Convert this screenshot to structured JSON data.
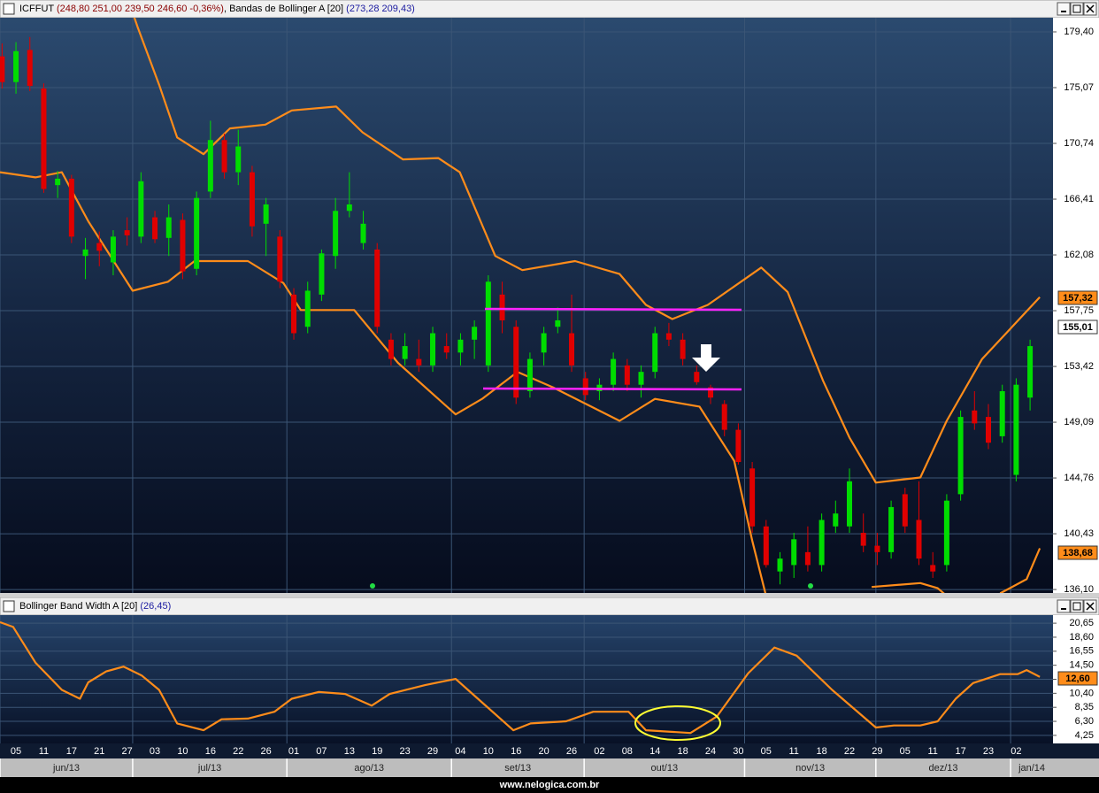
{
  "header": {
    "symbol": "ICFFUT",
    "quote": "(248,80  251,00  239,50  246,60  -0,36%)",
    "indicator": ", Bandas de Bollinger A [20]",
    "indicator_values": "(273,28  209,43)"
  },
  "lower_header": {
    "indicator": "Bollinger Band Width A [20]",
    "indicator_values": "(26,45)"
  },
  "price_tags": {
    "upper_band": "157,32",
    "last": "155,01",
    "lower_band": "138,68",
    "band_width": "12,60"
  },
  "chart_data": [
    {
      "type": "candlestick",
      "xlim": [
        -0.3,
        151.3
      ],
      "ylim": [
        135.83,
        180.5
      ],
      "yticks": [
        {
          "value": 179.4,
          "label": "179,40"
        },
        {
          "value": 175.07,
          "label": "175,07"
        },
        {
          "value": 170.74,
          "label": "170,74"
        },
        {
          "value": 166.41,
          "label": "166,41"
        },
        {
          "value": 162.08,
          "label": "162,08"
        },
        {
          "value": 157.75,
          "label": "157,75"
        },
        {
          "value": 153.42,
          "label": "153,42"
        },
        {
          "value": 149.09,
          "label": "149,09"
        },
        {
          "value": 144.76,
          "label": "144,76"
        },
        {
          "value": 140.43,
          "label": "140,43"
        },
        {
          "value": 136.1,
          "label": "136,10"
        }
      ],
      "up_color": "#00dd00",
      "down_color": "#e00000",
      "x": [
        0,
        2,
        4,
        6,
        8,
        10,
        12,
        14,
        16,
        18,
        20,
        22,
        24,
        26,
        28,
        30,
        32,
        34,
        36,
        38,
        40,
        42,
        44,
        46,
        48,
        50,
        52,
        54,
        56,
        58,
        60,
        62,
        64,
        66,
        68,
        70,
        72,
        74,
        76,
        78,
        80,
        82,
        84,
        86,
        88,
        90,
        92,
        94,
        96,
        98,
        100,
        102,
        104,
        106,
        108,
        110,
        112,
        114,
        116,
        118,
        120,
        122,
        124,
        126,
        128,
        130,
        132,
        134,
        136,
        138,
        140,
        142,
        144,
        146,
        148
      ],
      "open": [
        177.5,
        175.5,
        178.0,
        175.0,
        167.5,
        168.0,
        162.0,
        163.0,
        161.5,
        164.0,
        163.5,
        165.0,
        163.4,
        164.8,
        161.0,
        167.0,
        171.0,
        168.5,
        168.5,
        164.5,
        163.5,
        159.0,
        156.5,
        159.0,
        162.0,
        165.5,
        163.0,
        162.5,
        155.5,
        154.0,
        154.0,
        153.5,
        155.0,
        154.5,
        155.5,
        153.5,
        159.0,
        156.5,
        151.5,
        154.5,
        156.5,
        156.0,
        152.5,
        151.5,
        152.0,
        153.5,
        152.0,
        153.0,
        156.0,
        155.5,
        153.0,
        151.8,
        150.5,
        148.5,
        145.5,
        141.0,
        137.5,
        138.0,
        139.0,
        138.0,
        141.0,
        141.0,
        140.5,
        139.5,
        139.0,
        143.5,
        141.5,
        138.0,
        138.0,
        143.5,
        150.0,
        149.5,
        148.0,
        145.0,
        151.0
      ],
      "high": [
        178.5,
        178.6,
        179.0,
        175.4,
        168.6,
        168.3,
        163.4,
        163.9,
        164.0,
        165.0,
        168.5,
        165.5,
        166.0,
        165.3,
        167.0,
        172.5,
        171.5,
        171.8,
        169.0,
        166.5,
        164.0,
        159.5,
        160.0,
        162.5,
        166.5,
        168.5,
        165.5,
        163.0,
        156.0,
        156.0,
        155.5,
        156.5,
        156.0,
        156.0,
        157.0,
        160.5,
        160.0,
        157.0,
        154.5,
        156.5,
        158.0,
        159.0,
        153.0,
        152.5,
        154.5,
        154.0,
        153.5,
        156.5,
        156.8,
        156.0,
        153.5,
        152.0,
        150.8,
        149.0,
        146.0,
        141.5,
        139.0,
        140.5,
        141.0,
        142.0,
        143.0,
        145.5,
        142.0,
        140.5,
        143.0,
        144.0,
        144.5,
        139.0,
        143.5,
        150.0,
        151.5,
        150.5,
        152.0,
        152.5,
        155.5
      ],
      "low": [
        175.0,
        174.6,
        174.8,
        166.9,
        166.5,
        163.0,
        160.2,
        161.2,
        160.5,
        162.8,
        163.0,
        163.0,
        162.0,
        160.2,
        160.5,
        166.5,
        168.0,
        167.5,
        163.5,
        162.0,
        159.5,
        155.5,
        156.0,
        158.5,
        161.0,
        165.0,
        162.5,
        156.0,
        153.5,
        153.5,
        153.0,
        153.0,
        154.0,
        153.5,
        154.0,
        153.0,
        156.0,
        150.5,
        151.0,
        153.5,
        156.0,
        153.0,
        150.8,
        150.8,
        151.5,
        151.5,
        151.0,
        152.5,
        155.0,
        153.5,
        152.0,
        150.5,
        148.0,
        145.8,
        140.5,
        137.8,
        136.5,
        137.0,
        137.5,
        137.5,
        140.5,
        140.5,
        139.0,
        138.0,
        138.5,
        140.5,
        138.0,
        137.0,
        137.5,
        143.0,
        148.5,
        147.0,
        147.5,
        144.5,
        150.0
      ],
      "close": [
        175.5,
        177.9,
        175.2,
        167.2,
        168.0,
        163.5,
        162.5,
        162.4,
        163.5,
        163.6,
        167.8,
        163.3,
        165.0,
        160.8,
        166.5,
        171.0,
        168.5,
        170.5,
        164.3,
        166.0,
        160.0,
        156.0,
        159.3,
        162.2,
        165.5,
        166.0,
        164.5,
        156.5,
        154.0,
        155.0,
        153.5,
        156.0,
        154.5,
        155.5,
        156.5,
        160.0,
        157.0,
        151.0,
        154.0,
        156.0,
        157.0,
        153.5,
        151.2,
        152.0,
        154.0,
        152.0,
        153.0,
        156.0,
        155.5,
        154.0,
        152.2,
        151.0,
        148.5,
        146.0,
        141.0,
        138.0,
        138.5,
        140.0,
        138.0,
        141.5,
        142.0,
        144.5,
        139.5,
        139.0,
        142.5,
        141.0,
        138.5,
        137.5,
        143.0,
        149.5,
        149.0,
        147.5,
        151.5,
        152.0,
        155.0
      ],
      "bands": [
        {
          "color": "#ff8c1a",
          "x": [
            18.6,
            19.5,
            22.6,
            25.2,
            29.0,
            32.8,
            37.9,
            41.7,
            48.1,
            51.9,
            57.7,
            62.8,
            65.9,
            71.0,
            74.9,
            82.5,
            88.9,
            92.7,
            96.5,
            101.6,
            109.3,
            113.1,
            118.2,
            122.0,
            125.8,
            132.2,
            136.0,
            141.1,
            144.9,
            149.4
          ],
          "values": [
            181.2,
            179.8,
            175.3,
            171.2,
            169.9,
            171.9,
            172.2,
            173.3,
            173.6,
            171.6,
            169.5,
            169.6,
            168.5,
            162.0,
            160.9,
            161.6,
            160.6,
            158.2,
            157.1,
            158.2,
            161.1,
            159.2,
            152.3,
            147.9,
            144.4,
            144.8,
            149.2,
            154.0,
            156.2,
            158.8
          ]
        },
        {
          "color": "#ff8c1a",
          "x": [
            -0.3,
            4.8,
            8.6,
            12.4,
            18.8,
            23.9,
            27.7,
            35.4,
            40.5,
            43.0,
            50.7,
            57.0,
            65.3,
            69.1,
            74.2,
            79.3,
            88.9,
            94.0,
            100.4,
            105.4,
            108.0,
            109.9,
            null,
            125.2,
            132.2,
            134.7,
            136.0,
            null,
            143.7,
            147.5,
            149.4
          ],
          "values": [
            168.5,
            168.1,
            168.5,
            164.7,
            159.3,
            160.0,
            161.6,
            161.6,
            159.9,
            157.8,
            157.8,
            153.7,
            149.7,
            150.9,
            153.0,
            151.8,
            149.2,
            150.9,
            150.3,
            146.1,
            139.9,
            135.8,
            null,
            136.3,
            136.6,
            136.2,
            135.6,
            null,
            135.8,
            136.9,
            139.3
          ]
        }
      ]
    },
    {
      "type": "line",
      "xlim": [
        -0.3,
        151.3
      ],
      "ylim": [
        3.07,
        21.83
      ],
      "yticks": [
        {
          "value": 20.65,
          "label": "20,65"
        },
        {
          "value": 18.6,
          "label": "18,60"
        },
        {
          "value": 16.55,
          "label": "16,55"
        },
        {
          "value": 14.5,
          "label": "14,50"
        },
        {
          "value": 12.45,
          "label": "12,45"
        },
        {
          "value": 10.4,
          "label": "10,40"
        },
        {
          "value": 8.35,
          "label": "8,35"
        },
        {
          "value": 6.3,
          "label": "6,30"
        },
        {
          "value": 4.25,
          "label": "4,25"
        }
      ],
      "series": [
        {
          "color": "#ff8c1a",
          "x": [
            -0.3,
            1.6,
            4.8,
            8.6,
            11.2,
            12.4,
            15.0,
            17.5,
            20.1,
            22.6,
            25.2,
            29.0,
            31.6,
            35.4,
            39.2,
            41.7,
            45.6,
            49.4,
            53.2,
            55.8,
            60.9,
            65.3,
            68.5,
            73.6,
            76.1,
            81.2,
            85.1,
            90.2,
            92.7,
            99.1,
            102.9,
            107.4,
            111.2,
            114.4,
            119.5,
            125.8,
            128.4,
            132.2,
            134.7,
            137.3,
            139.8,
            143.7,
            146.2,
            147.5,
            149.4
          ],
          "values": [
            20.8,
            20.1,
            14.9,
            10.9,
            9.6,
            12.0,
            13.6,
            14.3,
            13.0,
            10.9,
            6.0,
            5.0,
            6.6,
            6.7,
            7.7,
            9.6,
            10.6,
            10.3,
            8.6,
            10.3,
            11.6,
            12.5,
            9.6,
            5.0,
            6.0,
            6.3,
            7.7,
            7.7,
            5.0,
            4.6,
            7.0,
            13.3,
            17.1,
            15.9,
            10.9,
            5.4,
            5.7,
            5.7,
            6.3,
            9.6,
            11.9,
            13.2,
            13.2,
            13.8,
            12.8
          ]
        }
      ]
    }
  ],
  "x_axis": {
    "ticks": [
      {
        "value": 2,
        "label": "05"
      },
      {
        "value": 6,
        "label": "11"
      },
      {
        "value": 10,
        "label": "17"
      },
      {
        "value": 14,
        "label": "21"
      },
      {
        "value": 18,
        "label": "27"
      },
      {
        "value": 22,
        "label": "03"
      },
      {
        "value": 26,
        "label": "10"
      },
      {
        "value": 30,
        "label": "16"
      },
      {
        "value": 34,
        "label": "22"
      },
      {
        "value": 38,
        "label": "26"
      },
      {
        "value": 42,
        "label": "01"
      },
      {
        "value": 46,
        "label": "07"
      },
      {
        "value": 50,
        "label": "13"
      },
      {
        "value": 54,
        "label": "19"
      },
      {
        "value": 58,
        "label": "23"
      },
      {
        "value": 62,
        "label": "29"
      },
      {
        "value": 66,
        "label": "04"
      },
      {
        "value": 70,
        "label": "10"
      },
      {
        "value": 74,
        "label": "16"
      },
      {
        "value": 78,
        "label": "20"
      },
      {
        "value": 82,
        "label": "26"
      },
      {
        "value": 86,
        "label": "02"
      },
      {
        "value": 90,
        "label": "08"
      },
      {
        "value": 94,
        "label": "14"
      },
      {
        "value": 98,
        "label": "18"
      },
      {
        "value": 102,
        "label": "24"
      },
      {
        "value": 106,
        "label": "30"
      },
      {
        "value": 110,
        "label": "05"
      },
      {
        "value": 114,
        "label": "11"
      },
      {
        "value": 118,
        "label": "18"
      },
      {
        "value": 122,
        "label": "22"
      },
      {
        "value": 126,
        "label": "29"
      },
      {
        "value": 130,
        "label": "05"
      },
      {
        "value": 134,
        "label": "11"
      },
      {
        "value": 138,
        "label": "17"
      },
      {
        "value": 142,
        "label": "23"
      },
      {
        "value": 146,
        "label": "02"
      }
    ],
    "months": [
      {
        "value": -0.3,
        "label": "jun/13"
      },
      {
        "value": 18.8,
        "label": "jul/13"
      },
      {
        "value": 41.0,
        "label": "ago/13"
      },
      {
        "value": 64.7,
        "label": "set/13"
      },
      {
        "value": 83.8,
        "label": "out/13"
      },
      {
        "value": 106.9,
        "label": "nov/13"
      },
      {
        "value": 125.8,
        "label": "dez/13"
      },
      {
        "value": 145.2,
        "label": "jan/14"
      }
    ]
  },
  "footer": "www.nelogica.com.br"
}
